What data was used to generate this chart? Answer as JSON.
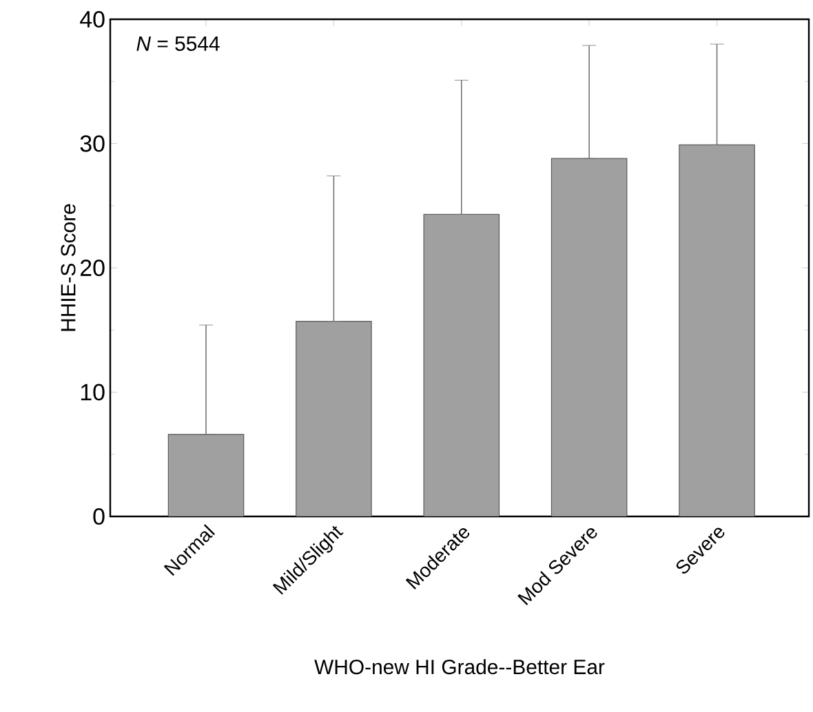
{
  "chart_data": {
    "type": "bar",
    "xlabel": "WHO-new HI Grade--Better Ear",
    "ylabel": "HHIE-S Score",
    "categories": [
      "Normal",
      "Mild/Slight",
      "Moderate",
      "Mod Severe",
      "Severe"
    ],
    "values": [
      6.6,
      15.7,
      24.3,
      28.8,
      29.9
    ],
    "errors": [
      [
        6.6,
        15.4
      ],
      [
        15.7,
        27.4
      ],
      [
        24.3,
        35.1
      ],
      [
        28.8,
        37.9
      ],
      [
        29.9,
        38.0
      ]
    ],
    "color": "#a0a0a0",
    "ylim": [
      0,
      40
    ],
    "yticks": [
      0,
      10,
      20,
      30,
      40
    ],
    "annotations": [
      "*N* = 5544"
    ],
    "grid": false
  }
}
